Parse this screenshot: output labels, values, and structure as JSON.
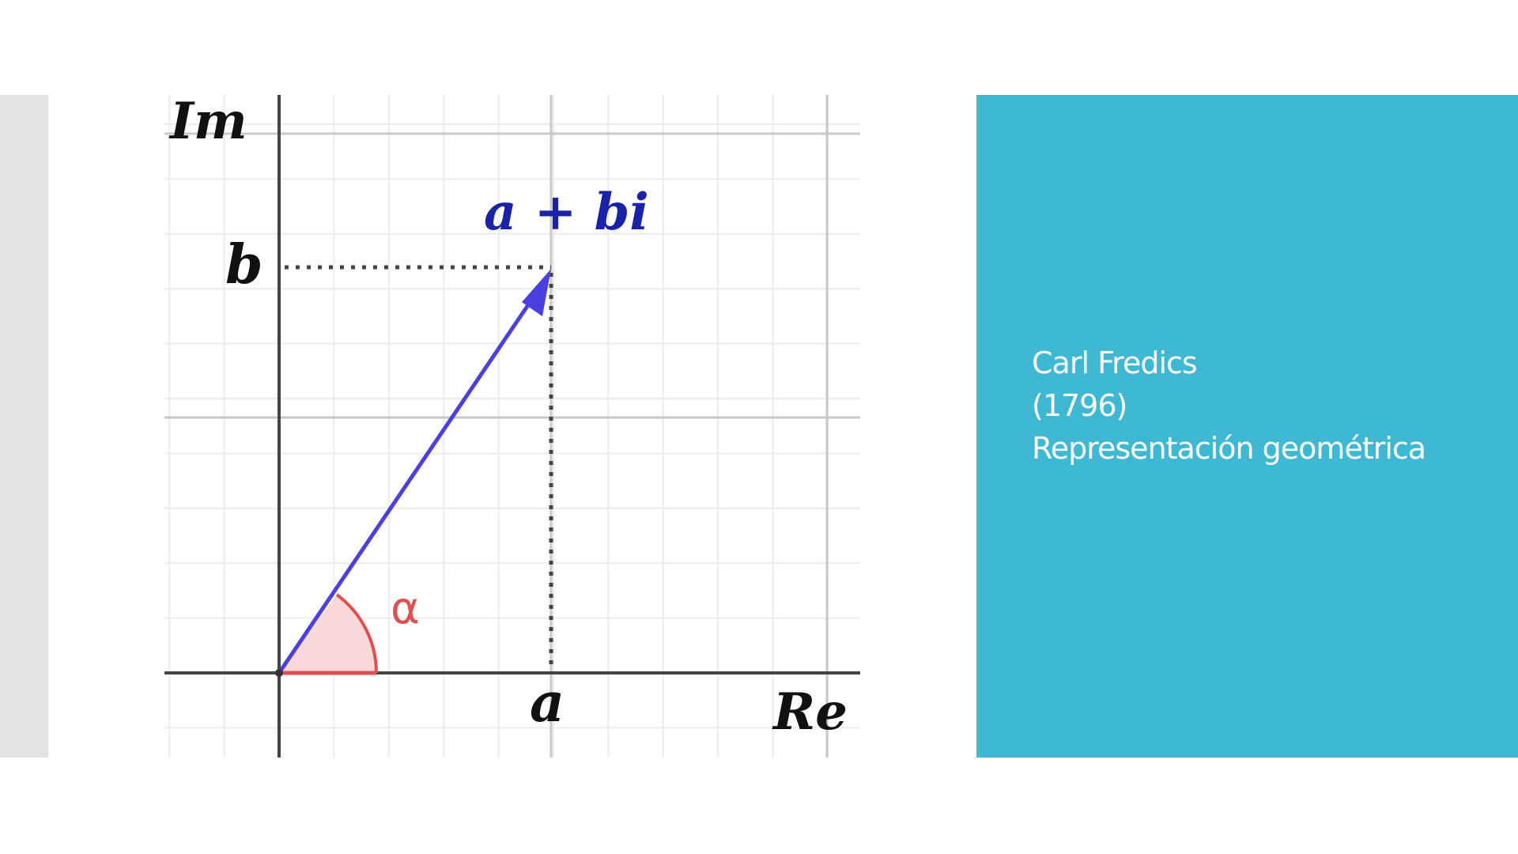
{
  "diagram": {
    "axis_im_label": "Im",
    "axis_re_label": "Re",
    "point_label": "a + bi",
    "b_tick_label": "b",
    "a_tick_label": "a",
    "angle_label": "α",
    "colors": {
      "vector": "#4a3fe0",
      "point_label": "#1a22a8",
      "angle": "#e05050",
      "angle_fill": "#f8d8d8",
      "axes": "#444444"
    }
  },
  "panel": {
    "line1": "Carl Fredics",
    "line2": "(1796)",
    "line3": "Representación geométrica",
    "color": "#3fb8d3"
  }
}
